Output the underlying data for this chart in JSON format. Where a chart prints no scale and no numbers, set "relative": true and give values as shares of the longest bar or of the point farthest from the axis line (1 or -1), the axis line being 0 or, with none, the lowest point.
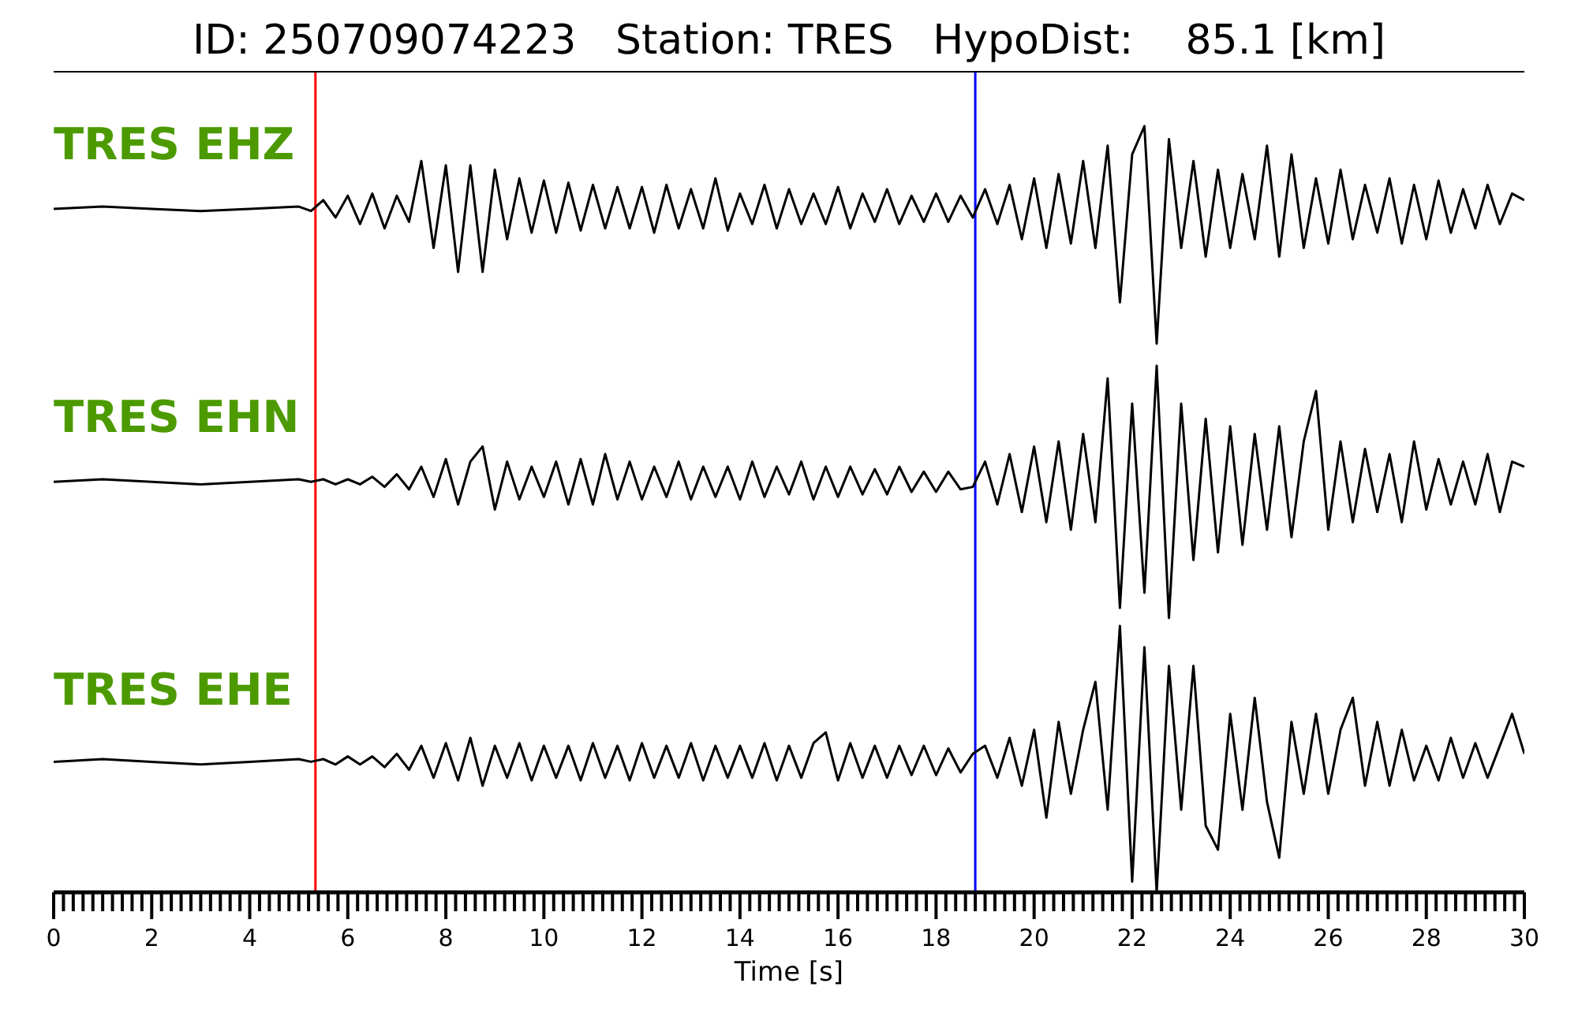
{
  "chart_data": [
    {
      "type": "line",
      "title": "ID: 250709074223   Station: TRES   HypoDist:    85.1 [km]",
      "annotations": [
        "TRES EHZ"
      ],
      "relative": true,
      "xlim": [
        0,
        30
      ],
      "tick_labels": false,
      "x": [
        0,
        1,
        2,
        3,
        4,
        5,
        5.25,
        5.5,
        5.75,
        6,
        6.25,
        6.5,
        6.75,
        7,
        7.25,
        7.5,
        7.75,
        8,
        8.25,
        8.5,
        8.75,
        9,
        9.25,
        9.5,
        9.75,
        10,
        10.25,
        10.5,
        10.75,
        11,
        11.25,
        11.5,
        11.75,
        12,
        12.25,
        12.5,
        12.75,
        13,
        13.25,
        13.5,
        13.75,
        14,
        14.25,
        14.5,
        14.75,
        15,
        15.25,
        15.5,
        15.75,
        16,
        16.25,
        16.5,
        16.75,
        17,
        17.25,
        17.5,
        17.75,
        18,
        18.25,
        18.5,
        18.75,
        19,
        19.25,
        19.5,
        19.75,
        20,
        20.25,
        20.5,
        20.75,
        21,
        21.25,
        21.5,
        21.75,
        22,
        22.25,
        22.5,
        22.75,
        23,
        23.25,
        23.5,
        23.75,
        24,
        24.25,
        24.5,
        24.75,
        25,
        25.25,
        25.5,
        25.75,
        26,
        26.25,
        26.5,
        26.75,
        27,
        27.25,
        27.5,
        27.75,
        28,
        28.25,
        28.5,
        28.75,
        29,
        29.25,
        29.5,
        29.75,
        30
      ],
      "series": [
        {
          "color": "#000000",
          "values": [
            0.62,
            0.63,
            0.62,
            0.61,
            0.62,
            0.63,
            0.61,
            0.66,
            0.58,
            0.68,
            0.55,
            0.69,
            0.53,
            0.68,
            0.56,
            0.84,
            0.44,
            0.82,
            0.33,
            0.82,
            0.33,
            0.8,
            0.48,
            0.76,
            0.51,
            0.75,
            0.51,
            0.74,
            0.52,
            0.73,
            0.53,
            0.72,
            0.53,
            0.72,
            0.51,
            0.73,
            0.53,
            0.71,
            0.53,
            0.76,
            0.52,
            0.69,
            0.55,
            0.73,
            0.53,
            0.71,
            0.55,
            0.69,
            0.55,
            0.72,
            0.53,
            0.69,
            0.56,
            0.71,
            0.55,
            0.68,
            0.56,
            0.69,
            0.56,
            0.68,
            0.58,
            0.71,
            0.55,
            0.73,
            0.48,
            0.76,
            0.44,
            0.78,
            0.46,
            0.84,
            0.44,
            0.91,
            0.19,
            0.87,
            1.0,
            0,
            0.94,
            0.44,
            0.84,
            0.4,
            0.8,
            0.44,
            0.78,
            0.48,
            0.91,
            0.4,
            0.87,
            0.44,
            0.76,
            0.46,
            0.8,
            0.48,
            0.73,
            0.51,
            0.76,
            0.46,
            0.73,
            0.48,
            0.75,
            0.51,
            0.71,
            0.53,
            0.73,
            0.55,
            0.69,
            0.66
          ]
        }
      ],
      "ref_lines": [
        {
          "axis": "x",
          "value": 5.34,
          "color": "#ff0000"
        },
        {
          "axis": "x",
          "value": 18.8,
          "color": "#0000ff"
        }
      ]
    },
    {
      "type": "line",
      "annotations": [
        "TRES EHN"
      ],
      "relative": true,
      "xlim": [
        0,
        30
      ],
      "tick_labels": false,
      "x": [
        0,
        1,
        2,
        3,
        4,
        5,
        5.25,
        5.5,
        5.75,
        6,
        6.25,
        6.5,
        6.75,
        7,
        7.25,
        7.5,
        7.75,
        8,
        8.25,
        8.5,
        8.75,
        9,
        9.25,
        9.5,
        9.75,
        10,
        10.25,
        10.5,
        10.75,
        11,
        11.25,
        11.5,
        11.75,
        12,
        12.25,
        12.5,
        12.75,
        13,
        13.25,
        13.5,
        13.75,
        14,
        14.25,
        14.5,
        14.75,
        15,
        15.25,
        15.5,
        15.75,
        16,
        16.25,
        16.5,
        16.75,
        17,
        17.25,
        17.5,
        17.75,
        18,
        18.25,
        18.5,
        18.75,
        19,
        19.25,
        19.5,
        19.75,
        20,
        20.25,
        20.5,
        20.75,
        21,
        21.25,
        21.5,
        21.75,
        22,
        22.25,
        22.5,
        22.75,
        23,
        23.25,
        23.5,
        23.75,
        24,
        24.25,
        24.5,
        24.75,
        25,
        25.25,
        25.5,
        25.75,
        26,
        26.25,
        26.5,
        26.75,
        27,
        27.25,
        27.5,
        27.75,
        28,
        28.25,
        28.5,
        28.75,
        29,
        29.25,
        29.5,
        29.75,
        30
      ],
      "series": [
        {
          "color": "#000000",
          "values": [
            0.54,
            0.55,
            0.54,
            0.53,
            0.54,
            0.55,
            0.54,
            0.55,
            0.53,
            0.55,
            0.53,
            0.56,
            0.52,
            0.57,
            0.51,
            0.6,
            0.48,
            0.63,
            0.45,
            0.62,
            0.68,
            0.43,
            0.62,
            0.47,
            0.6,
            0.48,
            0.62,
            0.45,
            0.63,
            0.45,
            0.65,
            0.47,
            0.62,
            0.47,
            0.6,
            0.48,
            0.62,
            0.47,
            0.6,
            0.48,
            0.6,
            0.47,
            0.62,
            0.48,
            0.6,
            0.49,
            0.62,
            0.47,
            0.6,
            0.48,
            0.6,
            0.49,
            0.59,
            0.49,
            0.6,
            0.5,
            0.58,
            0.5,
            0.58,
            0.51,
            0.52,
            0.62,
            0.45,
            0.65,
            0.42,
            0.68,
            0.38,
            0.7,
            0.35,
            0.73,
            0.38,
            0.95,
            0.04,
            0.85,
            0.1,
            1.0,
            0,
            0.85,
            0.23,
            0.79,
            0.26,
            0.76,
            0.29,
            0.73,
            0.35,
            0.76,
            0.32,
            0.7,
            0.9,
            0.35,
            0.7,
            0.38,
            0.67,
            0.42,
            0.65,
            0.38,
            0.7,
            0.43,
            0.63,
            0.45,
            0.62,
            0.45,
            0.65,
            0.42,
            0.62,
            0.6
          ]
        }
      ],
      "ref_lines": [
        {
          "axis": "x",
          "value": 5.34,
          "color": "#ff0000"
        },
        {
          "axis": "x",
          "value": 18.8,
          "color": "#0000ff"
        }
      ]
    },
    {
      "type": "line",
      "annotations": [
        "TRES EHE"
      ],
      "relative": true,
      "xlabel": "Time [s]",
      "xlim": [
        0,
        30
      ],
      "tick_labels": "x",
      "xticks": [
        0,
        {
          "value": 0.2,
          "label": null
        },
        {
          "value": 0.4,
          "label": null
        },
        {
          "value": 0.6,
          "label": null
        },
        {
          "value": 0.8,
          "label": null
        },
        {
          "value": 1,
          "label": null
        },
        {
          "value": 1.2,
          "label": null
        },
        {
          "value": 1.4,
          "label": null
        },
        {
          "value": 1.6,
          "label": null
        },
        {
          "value": 1.8,
          "label": null
        },
        2,
        {
          "value": 2.2,
          "label": null
        },
        {
          "value": 2.4,
          "label": null
        },
        {
          "value": 2.6,
          "label": null
        },
        {
          "value": 2.8,
          "label": null
        },
        {
          "value": 3,
          "label": null
        },
        {
          "value": 3.2,
          "label": null
        },
        {
          "value": 3.4,
          "label": null
        },
        {
          "value": 3.6,
          "label": null
        },
        {
          "value": 3.8,
          "label": null
        },
        4,
        {
          "value": 4.2,
          "label": null
        },
        {
          "value": 4.4,
          "label": null
        },
        {
          "value": 4.6,
          "label": null
        },
        {
          "value": 4.8,
          "label": null
        },
        {
          "value": 5,
          "label": null
        },
        {
          "value": 5.2,
          "label": null
        },
        {
          "value": 5.4,
          "label": null
        },
        {
          "value": 5.6,
          "label": null
        },
        {
          "value": 5.8,
          "label": null
        },
        6,
        {
          "value": 6.2,
          "label": null
        },
        {
          "value": 6.4,
          "label": null
        },
        {
          "value": 6.6,
          "label": null
        },
        {
          "value": 6.8,
          "label": null
        },
        {
          "value": 7,
          "label": null
        },
        {
          "value": 7.2,
          "label": null
        },
        {
          "value": 7.4,
          "label": null
        },
        {
          "value": 7.6,
          "label": null
        },
        {
          "value": 7.8,
          "label": null
        },
        8,
        {
          "value": 8.2,
          "label": null
        },
        {
          "value": 8.4,
          "label": null
        },
        {
          "value": 8.6,
          "label": null
        },
        {
          "value": 8.8,
          "label": null
        },
        {
          "value": 9,
          "label": null
        },
        {
          "value": 9.2,
          "label": null
        },
        {
          "value": 9.4,
          "label": null
        },
        {
          "value": 9.6,
          "label": null
        },
        {
          "value": 9.8,
          "label": null
        },
        10,
        {
          "value": 10.2,
          "label": null
        },
        {
          "value": 10.4,
          "label": null
        },
        {
          "value": 10.6,
          "label": null
        },
        {
          "value": 10.8,
          "label": null
        },
        {
          "value": 11,
          "label": null
        },
        {
          "value": 11.2,
          "label": null
        },
        {
          "value": 11.4,
          "label": null
        },
        {
          "value": 11.6,
          "label": null
        },
        {
          "value": 11.8,
          "label": null
        },
        12,
        {
          "value": 12.2,
          "label": null
        },
        {
          "value": 12.4,
          "label": null
        },
        {
          "value": 12.6,
          "label": null
        },
        {
          "value": 12.8,
          "label": null
        },
        {
          "value": 13,
          "label": null
        },
        {
          "value": 13.2,
          "label": null
        },
        {
          "value": 13.4,
          "label": null
        },
        {
          "value": 13.6,
          "label": null
        },
        {
          "value": 13.8,
          "label": null
        },
        14,
        {
          "value": 14.2,
          "label": null
        },
        {
          "value": 14.4,
          "label": null
        },
        {
          "value": 14.6,
          "label": null
        },
        {
          "value": 14.8,
          "label": null
        },
        {
          "value": 15,
          "label": null
        },
        {
          "value": 15.2,
          "label": null
        },
        {
          "value": 15.4,
          "label": null
        },
        {
          "value": 15.6,
          "label": null
        },
        {
          "value": 15.8,
          "label": null
        },
        16,
        {
          "value": 16.2,
          "label": null
        },
        {
          "value": 16.4,
          "label": null
        },
        {
          "value": 16.6,
          "label": null
        },
        {
          "value": 16.8,
          "label": null
        },
        {
          "value": 17,
          "label": null
        },
        {
          "value": 17.2,
          "label": null
        },
        {
          "value": 17.4,
          "label": null
        },
        {
          "value": 17.6,
          "label": null
        },
        {
          "value": 17.8,
          "label": null
        },
        18,
        {
          "value": 18.2,
          "label": null
        },
        {
          "value": 18.4,
          "label": null
        },
        {
          "value": 18.6,
          "label": null
        },
        {
          "value": 18.8,
          "label": null
        },
        {
          "value": 19,
          "label": null
        },
        {
          "value": 19.2,
          "label": null
        },
        {
          "value": 19.4,
          "label": null
        },
        {
          "value": 19.6,
          "label": null
        },
        {
          "value": 19.8,
          "label": null
        },
        20,
        {
          "value": 20.2,
          "label": null
        },
        {
          "value": 20.4,
          "label": null
        },
        {
          "value": 20.6,
          "label": null
        },
        {
          "value": 20.8,
          "label": null
        },
        {
          "value": 21,
          "label": null
        },
        {
          "value": 21.2,
          "label": null
        },
        {
          "value": 21.4,
          "label": null
        },
        {
          "value": 21.6,
          "label": null
        },
        {
          "value": 21.8,
          "label": null
        },
        22,
        {
          "value": 22.2,
          "label": null
        },
        {
          "value": 22.4,
          "label": null
        },
        {
          "value": 22.6,
          "label": null
        },
        {
          "value": 22.8,
          "label": null
        },
        {
          "value": 23,
          "label": null
        },
        {
          "value": 23.2,
          "label": null
        },
        {
          "value": 23.4,
          "label": null
        },
        {
          "value": 23.6,
          "label": null
        },
        {
          "value": 23.8,
          "label": null
        },
        24,
        {
          "value": 24.2,
          "label": null
        },
        {
          "value": 24.4,
          "label": null
        },
        {
          "value": 24.6,
          "label": null
        },
        {
          "value": 24.8,
          "label": null
        },
        {
          "value": 25,
          "label": null
        },
        {
          "value": 25.2,
          "label": null
        },
        {
          "value": 25.4,
          "label": null
        },
        {
          "value": 25.6,
          "label": null
        },
        {
          "value": 25.8,
          "label": null
        },
        26,
        {
          "value": 26.2,
          "label": null
        },
        {
          "value": 26.4,
          "label": null
        },
        {
          "value": 26.6,
          "label": null
        },
        {
          "value": 26.8,
          "label": null
        },
        {
          "value": 27,
          "label": null
        },
        {
          "value": 27.2,
          "label": null
        },
        {
          "value": 27.4,
          "label": null
        },
        {
          "value": 27.6,
          "label": null
        },
        {
          "value": 27.8,
          "label": null
        },
        28,
        {
          "value": 28.2,
          "label": null
        },
        {
          "value": 28.4,
          "label": null
        },
        {
          "value": 28.6,
          "label": null
        },
        {
          "value": 28.8,
          "label": null
        },
        {
          "value": 29,
          "label": null
        },
        {
          "value": 29.2,
          "label": null
        },
        {
          "value": 29.4,
          "label": null
        },
        {
          "value": 29.6,
          "label": null
        },
        {
          "value": 29.8,
          "label": null
        },
        30
      ],
      "x": [
        0,
        1,
        2,
        3,
        4,
        5,
        5.25,
        5.5,
        5.75,
        6,
        6.25,
        6.5,
        6.75,
        7,
        7.25,
        7.5,
        7.75,
        8,
        8.25,
        8.5,
        8.75,
        9,
        9.25,
        9.5,
        9.75,
        10,
        10.25,
        10.5,
        10.75,
        11,
        11.25,
        11.5,
        11.75,
        12,
        12.25,
        12.5,
        12.75,
        13,
        13.25,
        13.5,
        13.75,
        14,
        14.25,
        14.5,
        14.75,
        15,
        15.25,
        15.5,
        15.75,
        16,
        16.25,
        16.5,
        16.75,
        17,
        17.25,
        17.5,
        17.75,
        18,
        18.25,
        18.5,
        18.75,
        19,
        19.25,
        19.5,
        19.75,
        20,
        20.25,
        20.5,
        20.75,
        21,
        21.25,
        21.5,
        21.75,
        22,
        22.25,
        22.5,
        22.75,
        23,
        23.25,
        23.5,
        23.75,
        24,
        24.25,
        24.5,
        24.75,
        25,
        25.25,
        25.5,
        25.75,
        26,
        26.25,
        26.5,
        26.75,
        27,
        27.25,
        27.5,
        27.75,
        28,
        28.25,
        28.5,
        28.75,
        29,
        29.25,
        29.5,
        29.75,
        30
      ],
      "series": [
        {
          "color": "#000000",
          "values": [
            0.49,
            0.5,
            0.49,
            0.48,
            0.49,
            0.5,
            0.49,
            0.5,
            0.48,
            0.51,
            0.48,
            0.51,
            0.47,
            0.52,
            0.46,
            0.55,
            0.43,
            0.56,
            0.42,
            0.58,
            0.4,
            0.55,
            0.43,
            0.56,
            0.42,
            0.55,
            0.43,
            0.55,
            0.42,
            0.56,
            0.43,
            0.55,
            0.42,
            0.56,
            0.43,
            0.55,
            0.43,
            0.56,
            0.42,
            0.55,
            0.43,
            0.55,
            0.43,
            0.56,
            0.42,
            0.55,
            0.43,
            0.56,
            0.6,
            0.42,
            0.56,
            0.43,
            0.55,
            0.43,
            0.55,
            0.44,
            0.55,
            0.44,
            0.54,
            0.45,
            0.52,
            0.55,
            0.43,
            0.58,
            0.4,
            0.61,
            0.28,
            0.64,
            0.37,
            0.61,
            0.79,
            0.31,
            1.0,
            0.04,
            0.92,
            0,
            0.85,
            0.31,
            0.85,
            0.25,
            0.16,
            0.67,
            0.31,
            0.73,
            0.34,
            0.13,
            0.64,
            0.37,
            0.67,
            0.37,
            0.61,
            0.73,
            0.4,
            0.64,
            0.4,
            0.61,
            0.42,
            0.55,
            0.42,
            0.58,
            0.43,
            0.56,
            0.43,
            0.55,
            0.67,
            0.52
          ]
        }
      ],
      "ref_lines": [
        {
          "axis": "x",
          "value": 5.34,
          "color": "#ff0000"
        },
        {
          "axis": "x",
          "value": 18.8,
          "color": "#0000ff"
        }
      ]
    }
  ]
}
